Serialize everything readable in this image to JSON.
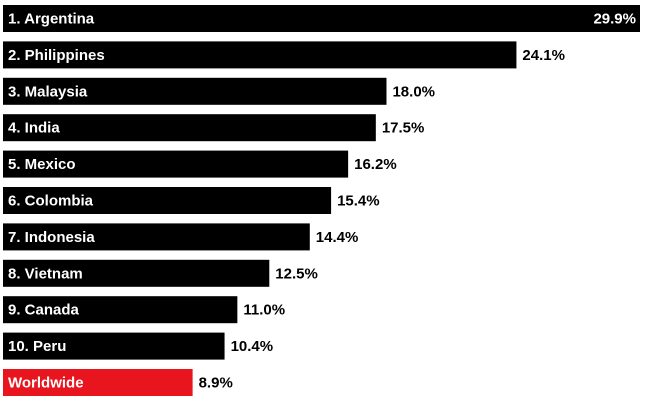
{
  "chart_data": {
    "type": "bar",
    "orientation": "horizontal",
    "categories": [
      "1. Argentina",
      "2. Philippines",
      "3. Malaysia",
      "4. India",
      "5. Mexico",
      "6. Colombia",
      "7. Indonesia",
      "8. Vietnam",
      "9. Canada",
      "10. Peru",
      "Worldwide"
    ],
    "values": [
      29.9,
      24.1,
      18.0,
      17.5,
      16.2,
      15.4,
      14.4,
      12.5,
      11.0,
      10.4,
      8.9
    ],
    "value_labels": [
      "29.9%",
      "24.1%",
      "18.0%",
      "17.5%",
      "16.2%",
      "15.4%",
      "14.4%",
      "12.5%",
      "11.0%",
      "10.4%",
      "8.9%"
    ],
    "colors": [
      "#000000",
      "#000000",
      "#000000",
      "#000000",
      "#000000",
      "#000000",
      "#000000",
      "#000000",
      "#000000",
      "#000000",
      "#e8141e"
    ]
  }
}
